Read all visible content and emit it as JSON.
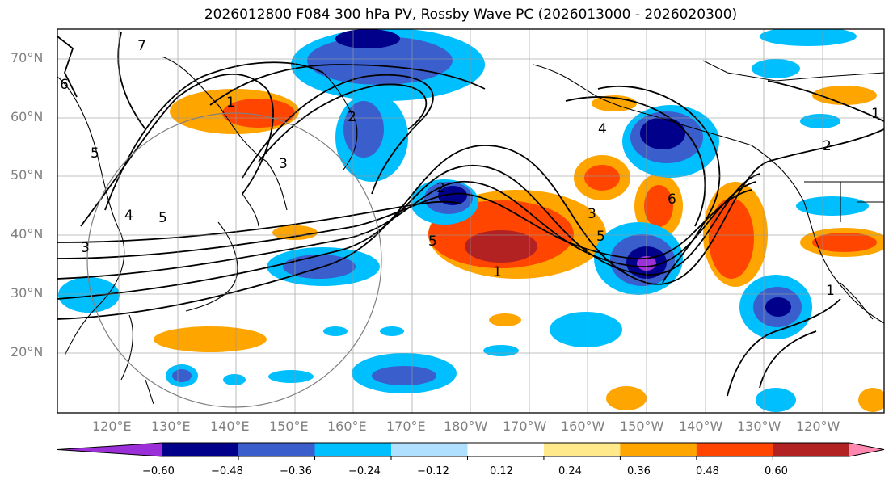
{
  "title": "2026012800 F084 300 hPa PV, Rossby Wave PC (2026013000 - 2026020300)",
  "lat_labels": [
    "70°N",
    "60°N",
    "50°N",
    "40°N",
    "30°N",
    "20°N"
  ],
  "lon_labels": [
    "120°E",
    "130°E",
    "140°E",
    "150°E",
    "160°E",
    "170°E",
    "180°W",
    "170°W",
    "160°W",
    "150°W",
    "140°W",
    "130°W",
    "120°W"
  ],
  "colorbar": {
    "colors": [
      "#9b30d9",
      "#00008b",
      "#3a5fcd",
      "#00bfff",
      "#b0e0ff",
      "#ffffff",
      "#ffe98a",
      "#ffa500",
      "#ff4500",
      "#b22222",
      "#ff88b0"
    ],
    "labels": [
      "−0.60",
      "−0.48",
      "−0.36",
      "−0.24",
      "−0.12",
      "0.12",
      "0.24",
      "0.36",
      "0.48",
      "0.60"
    ]
  },
  "contour_labels": [
    "6",
    "7",
    "5",
    "4",
    "3",
    "5",
    "2",
    "1",
    "3",
    "3",
    "5",
    "6",
    "1",
    "2",
    "5",
    "1",
    "1",
    "4",
    "2"
  ]
}
